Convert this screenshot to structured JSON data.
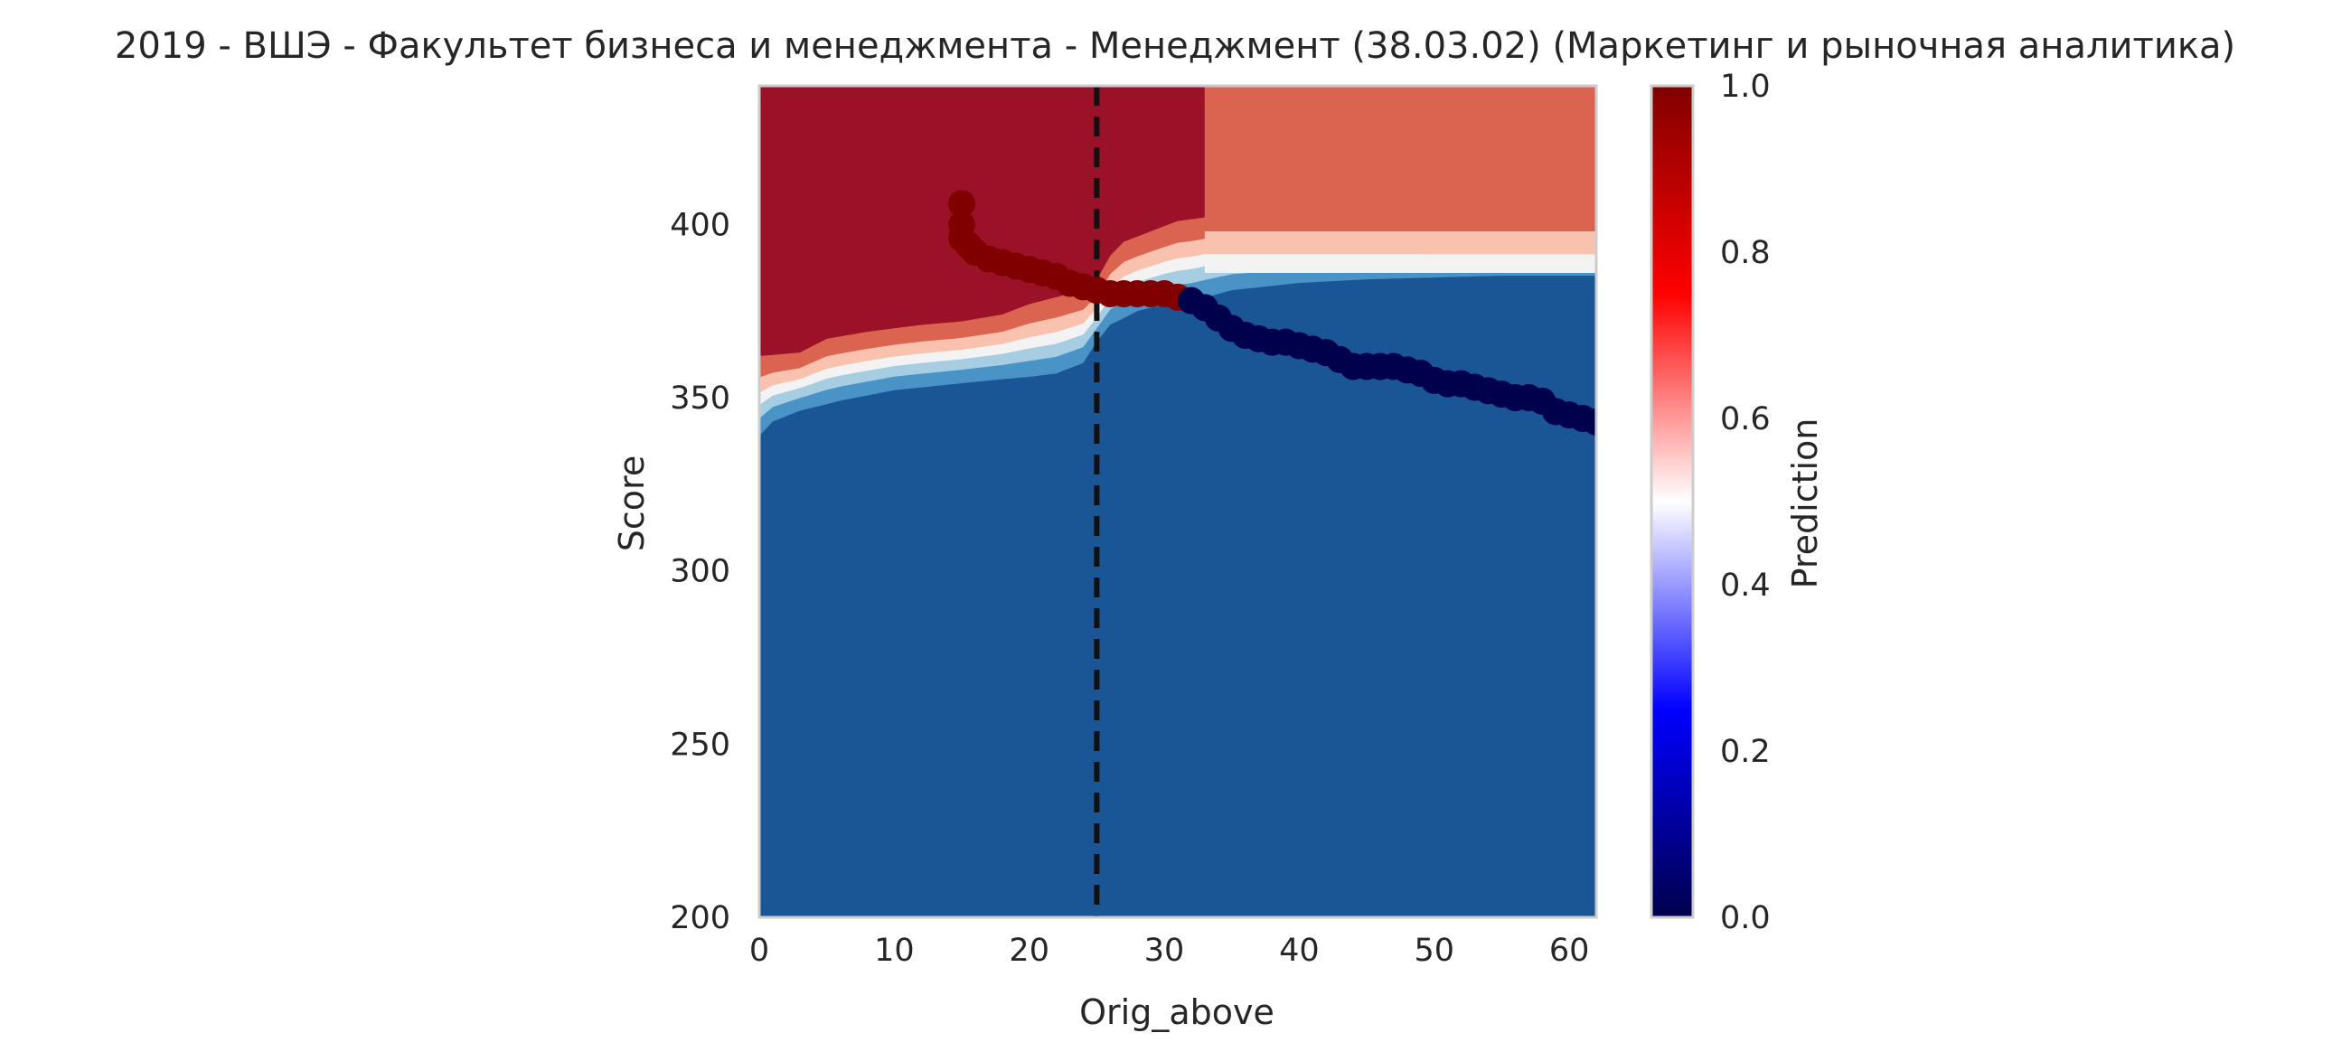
{
  "chart_data": {
    "type": "heatmap",
    "title": "2019 - ВШЭ - Факультет бизнеса и менеджмента - Менеджмент (38.03.02) (Маркетинг и рыночная аналитика)",
    "xlabel": "Orig_above",
    "ylabel": "Score",
    "xlim": [
      0,
      62
    ],
    "ylim": [
      200,
      440
    ],
    "x_ticks": [
      "0",
      "10",
      "20",
      "30",
      "40",
      "50",
      "60"
    ],
    "y_ticks": [
      "200",
      "250",
      "300",
      "350",
      "400"
    ],
    "grid": false,
    "vline": {
      "x": 25,
      "style": "dashed",
      "color": "#111111"
    },
    "colorbar": {
      "label": "Prediction",
      "colormap": "seismic",
      "range": [
        0.0,
        1.0
      ],
      "ticks": [
        "0.0",
        "0.2",
        "0.4",
        "0.6",
        "0.8",
        "1.0"
      ]
    },
    "colors": {
      "high": "#9b1127",
      "mid_high": "#db6451",
      "light_red": "#f9c2ae",
      "near_white": "#f3f3f3",
      "light_blue": "#a7cde3",
      "mid_blue": "#4993c6",
      "low": "#1a5596",
      "points_high": "#800000",
      "points_low": "#00004c"
    },
    "regions": {
      "boundary_upper": [
        [
          0,
          362
        ],
        [
          3,
          363
        ],
        [
          5,
          367
        ],
        [
          8,
          369
        ],
        [
          12,
          371
        ],
        [
          15,
          372
        ],
        [
          18,
          374
        ],
        [
          20,
          377
        ],
        [
          22,
          379
        ],
        [
          24,
          381
        ],
        [
          25,
          384
        ],
        [
          26,
          391
        ],
        [
          27,
          395
        ],
        [
          29,
          398
        ],
        [
          31,
          401
        ],
        [
          33,
          402
        ]
      ],
      "boundary_lower": [
        [
          0,
          340
        ],
        [
          1,
          344
        ],
        [
          3,
          347
        ],
        [
          6,
          350
        ],
        [
          10,
          353
        ],
        [
          15,
          355
        ],
        [
          20,
          357
        ],
        [
          22,
          358
        ],
        [
          24,
          361
        ],
        [
          25,
          367
        ],
        [
          26,
          372
        ],
        [
          28,
          376
        ],
        [
          30,
          378
        ],
        [
          32,
          379
        ],
        [
          35,
          382
        ],
        [
          40,
          384
        ],
        [
          45,
          385
        ],
        [
          55,
          386
        ],
        [
          62,
          386
        ]
      ],
      "right_step_x": 33,
      "right_upper": 398,
      "right_lower": 386
    },
    "series": [
      {
        "name": "",
        "x": [
          15,
          15,
          15,
          15.5,
          16,
          17,
          18,
          19,
          20,
          21,
          22,
          23,
          24,
          25,
          26,
          27,
          28,
          29,
          30,
          31,
          32,
          33,
          34,
          35,
          36,
          37,
          38,
          39,
          40,
          41,
          42,
          43,
          44,
          45,
          46,
          47,
          48,
          49,
          50,
          51,
          52,
          53,
          54,
          55,
          56,
          57,
          58,
          59,
          60,
          61,
          62
        ],
        "y": [
          406,
          400,
          396,
          394,
          392,
          390,
          389,
          388,
          387,
          386,
          385,
          383,
          382,
          381,
          380,
          380,
          380,
          380,
          380,
          379,
          378,
          376,
          373,
          370,
          368,
          367,
          366,
          366,
          365,
          364,
          363,
          361,
          359,
          359,
          359,
          359,
          358,
          357,
          355,
          354,
          354,
          353,
          352,
          351,
          350,
          350,
          349,
          346,
          345,
          344,
          343
        ],
        "color_values": [
          1,
          1,
          1,
          1,
          1,
          1,
          1,
          1,
          1,
          1,
          1,
          1,
          1,
          1,
          1,
          1,
          1,
          1,
          1,
          1,
          0,
          0,
          0,
          0,
          0,
          0,
          0,
          0,
          0,
          0,
          0,
          0,
          0,
          0,
          0,
          0,
          0,
          0,
          0,
          0,
          0,
          0,
          0,
          0,
          0,
          0,
          0,
          0,
          0,
          0,
          0
        ]
      }
    ]
  }
}
